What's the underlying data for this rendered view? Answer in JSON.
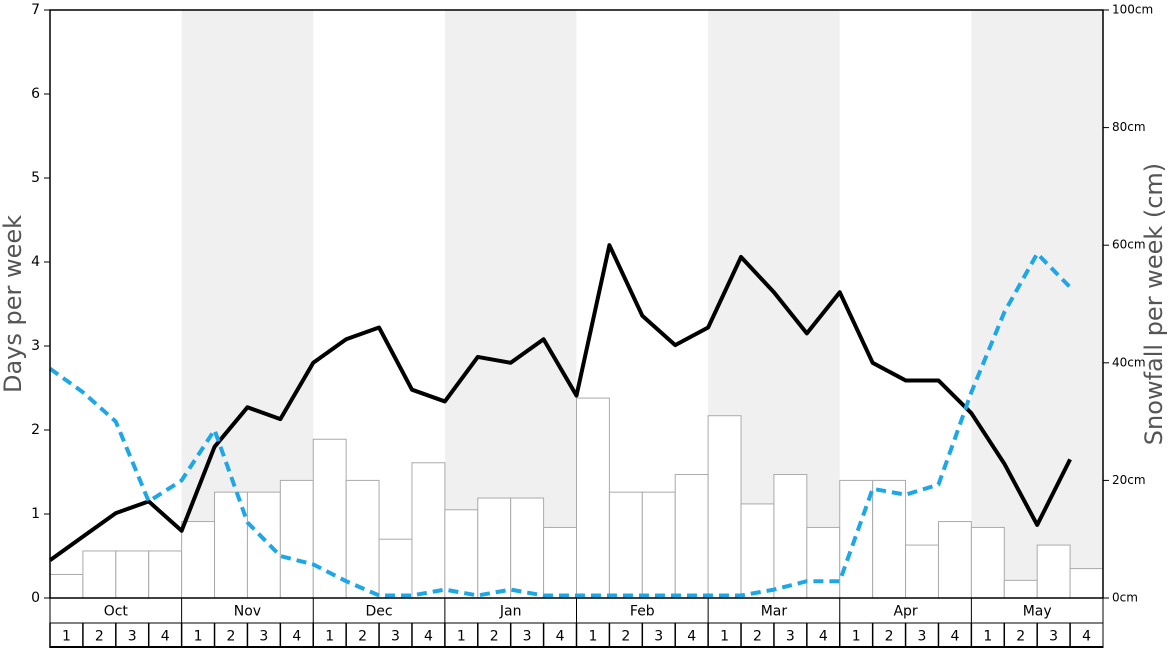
{
  "chart_data": {
    "type": "bar",
    "ylabel": "Days per week",
    "y2label": "Snowfall per week (cm)",
    "months": [
      "Oct",
      "Nov",
      "Dec",
      "Jan",
      "Feb",
      "Mar",
      "Apr",
      "May"
    ],
    "categories": [
      "1",
      "2",
      "3",
      "4",
      "1",
      "2",
      "3",
      "4",
      "1",
      "2",
      "3",
      "4",
      "1",
      "2",
      "3",
      "4",
      "1",
      "2",
      "3",
      "4",
      "1",
      "2",
      "3",
      "4",
      "1",
      "2",
      "3",
      "4",
      "1",
      "2",
      "3",
      "4"
    ],
    "ylim": [
      0,
      7
    ],
    "yticks": [
      0,
      1,
      2,
      3,
      4,
      5,
      6,
      7
    ],
    "y2lim": [
      0,
      100
    ],
    "y2ticks": [
      {
        "value": 0,
        "label": "0cm"
      },
      {
        "value": 20,
        "label": "20cm"
      },
      {
        "value": 40,
        "label": "40cm"
      },
      {
        "value": 60,
        "label": "60cm"
      },
      {
        "value": 80,
        "label": "80cm"
      },
      {
        "value": 100,
        "label": "100cm"
      }
    ],
    "shade_color": "#f0f0f0",
    "series": [
      {
        "type": "bar",
        "axis": "y2",
        "color": "#ffffff",
        "stroke": "#aaaaaa",
        "values": [
          4,
          8,
          8,
          8,
          13,
          18,
          18,
          20,
          27,
          20,
          10,
          23,
          15,
          17,
          17,
          12,
          34,
          18,
          18,
          21,
          31,
          16,
          21,
          12,
          20,
          20,
          9,
          13,
          12,
          3,
          9,
          5
        ]
      },
      {
        "type": "line",
        "color": "#000000",
        "dashed": false,
        "values": [
          0.45,
          0.73,
          1.01,
          1.15,
          0.8,
          1.8,
          2.27,
          2.13,
          2.8,
          3.08,
          3.22,
          2.48,
          2.34,
          2.87,
          2.8,
          3.08,
          2.41,
          4.2,
          3.36,
          3.01,
          3.22,
          4.06,
          3.64,
          3.15,
          3.64,
          2.8,
          2.59,
          2.59,
          2.2,
          1.6,
          0.87,
          1.65
        ]
      },
      {
        "type": "line",
        "color": "#1ea7e8",
        "dashed": true,
        "values": [
          2.73,
          2.45,
          2.1,
          1.15,
          1.4,
          2.0,
          0.9,
          0.5,
          0.4,
          0.2,
          0.03,
          0.03,
          0.1,
          0.03,
          0.1,
          0.03,
          0.03,
          0.03,
          0.03,
          0.03,
          0.03,
          0.03,
          0.1,
          0.2,
          0.2,
          1.3,
          1.23,
          1.35,
          2.45,
          3.4,
          4.1,
          3.7
        ]
      }
    ]
  }
}
